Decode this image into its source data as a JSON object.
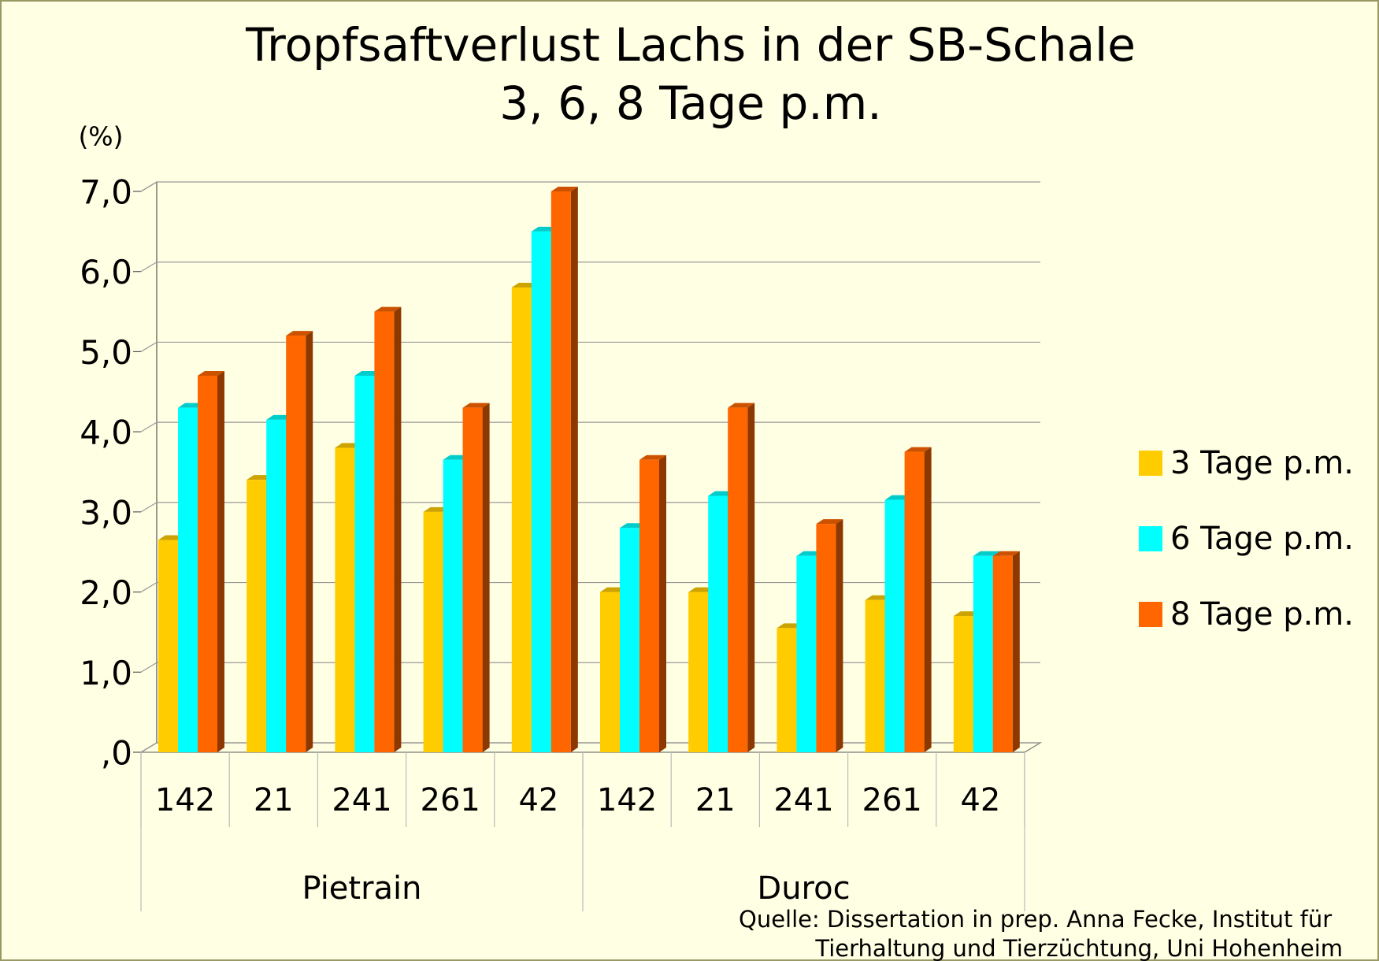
{
  "chart_data": {
    "type": "bar3d",
    "title": "Tropfsaftverlust Lachs in der SB-Schale",
    "subtitle": "3, 6, 8 Tage p.m.",
    "y_axis_label": "(%)",
    "categories": [
      "142",
      "21",
      "241",
      "261",
      "42",
      "142",
      "21",
      "241",
      "261",
      "42"
    ],
    "groups": [
      "Pietrain",
      "Duroc"
    ],
    "series": [
      {
        "name": "3 Tage p.m.",
        "color": "#ffcc00",
        "values": [
          2.65,
          3.4,
          3.8,
          3.0,
          5.8,
          2.0,
          2.0,
          1.55,
          1.9,
          1.7
        ]
      },
      {
        "name": "6 Tage p.m.",
        "color": "#00ffff",
        "values": [
          4.3,
          4.15,
          4.7,
          3.65,
          6.5,
          2.8,
          3.2,
          2.45,
          3.15,
          2.45
        ]
      },
      {
        "name": "8 Tage p.m.",
        "color": "#ff6600",
        "values": [
          4.7,
          5.2,
          5.5,
          4.3,
          7.0,
          3.65,
          4.3,
          2.85,
          3.75,
          2.45
        ]
      }
    ],
    "ylim": [
      0,
      7
    ],
    "yticks": [
      {
        "value": 0,
        "label": ",0"
      },
      {
        "value": 1,
        "label": "1,0"
      },
      {
        "value": 2,
        "label": "2,0"
      },
      {
        "value": 3,
        "label": "3,0"
      },
      {
        "value": 4,
        "label": "4,0"
      },
      {
        "value": 5,
        "label": "5,0"
      },
      {
        "value": 6,
        "label": "6,0"
      },
      {
        "value": 7,
        "label": "7,0"
      }
    ],
    "grid": true,
    "legend_position": "right",
    "source": [
      "Quelle: Dissertation in prep. Anna Fecke, Institut für",
      "Tierhaltung und Tierzüchtung, Uni Hohenheim"
    ]
  }
}
